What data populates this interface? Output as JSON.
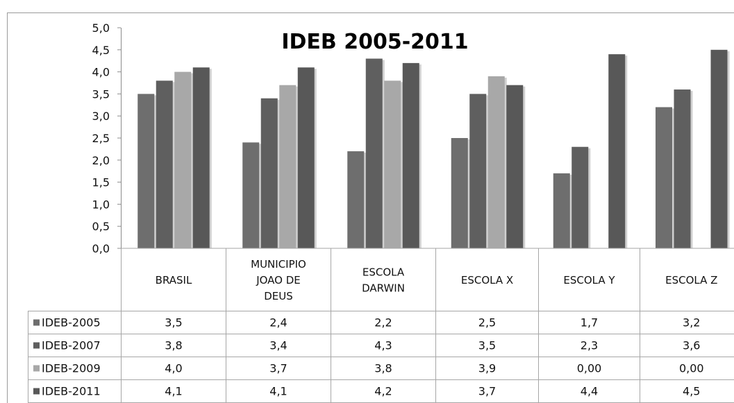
{
  "chart_data": {
    "type": "bar",
    "title": "IDEB 2005-2011",
    "categories": [
      [
        "BRASIL"
      ],
      [
        "MUNICIPIO",
        "JOAO DE",
        "DEUS"
      ],
      [
        "ESCOLA",
        "DARWIN"
      ],
      [
        "ESCOLA X"
      ],
      [
        "ESCOLA Y"
      ],
      [
        "ESCOLA Z"
      ]
    ],
    "yticks": [
      "0,0",
      "0,5",
      "1,0",
      "1,5",
      "2,0",
      "2,5",
      "3,0",
      "3,5",
      "4,0",
      "4,5",
      "5,0"
    ],
    "ylim": [
      0,
      5
    ],
    "grid": false,
    "legend": "data-table",
    "series": [
      {
        "name": "IDEB-2005",
        "color": "#6e6e6e",
        "values": [
          3.5,
          2.4,
          2.2,
          2.5,
          1.7,
          3.2
        ],
        "labels": [
          "3,5",
          "2,4",
          "2,2",
          "2,5",
          "1,7",
          "3,2"
        ]
      },
      {
        "name": "IDEB-2007",
        "color": "#5f5f5f",
        "values": [
          3.8,
          3.4,
          4.3,
          3.5,
          2.3,
          3.6
        ],
        "labels": [
          "3,8",
          "3,4",
          "4,3",
          "3,5",
          "2,3",
          "3,6"
        ]
      },
      {
        "name": "IDEB-2009",
        "color": "#a8a8a8",
        "values": [
          4.0,
          3.7,
          3.8,
          3.9,
          0,
          0
        ],
        "labels": [
          "4,0",
          "3,7",
          "3,8",
          "3,9",
          "0,00",
          "0,00"
        ]
      },
      {
        "name": "IDEB-2011",
        "color": "#585858",
        "values": [
          4.1,
          4.1,
          4.2,
          3.7,
          4.4,
          4.5
        ],
        "labels": [
          "4,1",
          "4,1",
          "4,2",
          "3,7",
          "4,4",
          "4,5"
        ]
      }
    ]
  }
}
